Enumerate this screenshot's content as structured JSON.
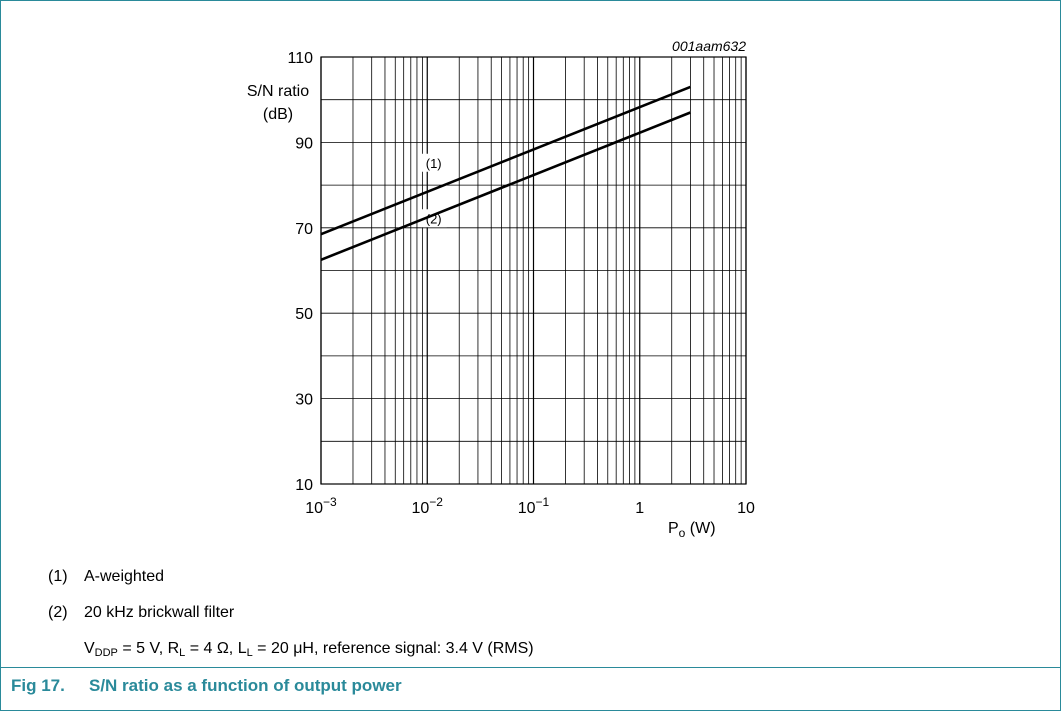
{
  "chart_data": {
    "type": "line",
    "code": "001aam632",
    "ylabel_line1": "S/N ratio",
    "ylabel_line2": "(dB)",
    "xlabel_main": "P",
    "xlabel_sub": "o",
    "xlabel_unit": " (W)",
    "x_scale": "log",
    "xlim": [
      0.001,
      10
    ],
    "ylim": [
      10,
      110
    ],
    "y_ticks": [
      10,
      30,
      50,
      70,
      90,
      110
    ],
    "x_ticks": [
      {
        "value": 0.001,
        "base": "10",
        "exp": "−3"
      },
      {
        "value": 0.01,
        "base": "10",
        "exp": "−2"
      },
      {
        "value": 0.1,
        "base": "10",
        "exp": "−1"
      },
      {
        "value": 1,
        "base": "1",
        "exp": ""
      },
      {
        "value": 10,
        "base": "10",
        "exp": ""
      }
    ],
    "grid": true,
    "series": [
      {
        "name": "(1)",
        "x": [
          0.001,
          3
        ],
        "y": [
          68.5,
          103
        ]
      },
      {
        "name": "(2)",
        "x": [
          0.001,
          3
        ],
        "y": [
          62.5,
          97
        ]
      }
    ],
    "annotations": [
      {
        "text": "(1)",
        "x": 0.0115,
        "y": 85
      },
      {
        "text": "(2)",
        "x": 0.0115,
        "y": 72
      }
    ]
  },
  "notes": [
    {
      "num": "(1)",
      "text": "A-weighted"
    },
    {
      "num": "(2)",
      "text": "20 kHz brickwall filter"
    }
  ],
  "conditions": {
    "v_sym": "V",
    "v_sub": "DDP",
    "v_val": " = 5 V, ",
    "r_sym": "R",
    "r_sub": "L",
    "r_val": " = 4 Ω, ",
    "l_sym": "L",
    "l_sub": "L",
    "l_val": " = 20 μH, reference signal: 3.4 V (RMS)"
  },
  "caption": {
    "fig": "Fig 17.",
    "text": "S/N ratio as a function of output power"
  },
  "colors": {
    "accent": "#2a8a9a",
    "line": "#000000"
  }
}
